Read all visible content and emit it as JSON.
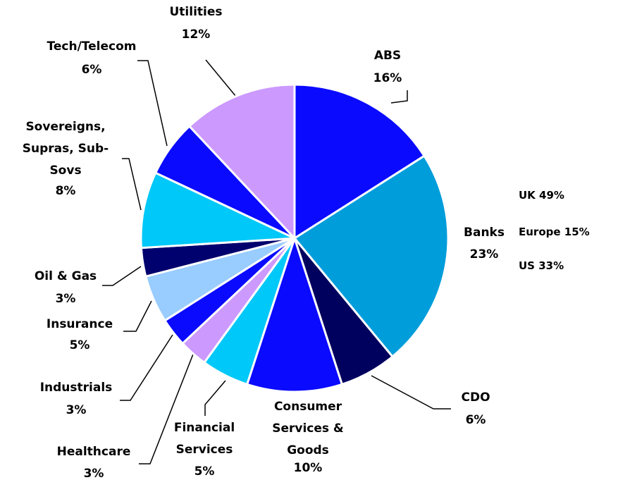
{
  "chart_data": {
    "type": "pie",
    "categories": [
      "ABS",
      "Banks",
      "CDO",
      "Consumer\nServices &\nGoods",
      "Financial\nServices",
      "Healthcare",
      "Industrials",
      "Insurance",
      "Oil & Gas",
      "Sovereigns,\nSupras, Sub-\nSovs",
      "Tech/Telecom",
      "Utilities"
    ],
    "values": [
      16,
      23,
      6,
      10,
      5,
      3,
      3,
      5,
      3,
      8,
      6,
      12
    ],
    "value_labels": [
      "16%",
      "23%",
      "6%",
      "10%",
      "5%",
      "3%",
      "3%",
      "5%",
      "3%",
      "8%",
      "6%",
      "12%"
    ],
    "colors": [
      "#0a0aff",
      "#009ddb",
      "#00005e",
      "#0a0aff",
      "#00c8f8",
      "#cc99ff",
      "#0a0aff",
      "#99ccff",
      "#00006e",
      "#00c8f8",
      "#0a0aff",
      "#cc99ff"
    ],
    "annotations": [
      "UK 49%",
      "Europe 15%",
      "US 33%"
    ]
  }
}
